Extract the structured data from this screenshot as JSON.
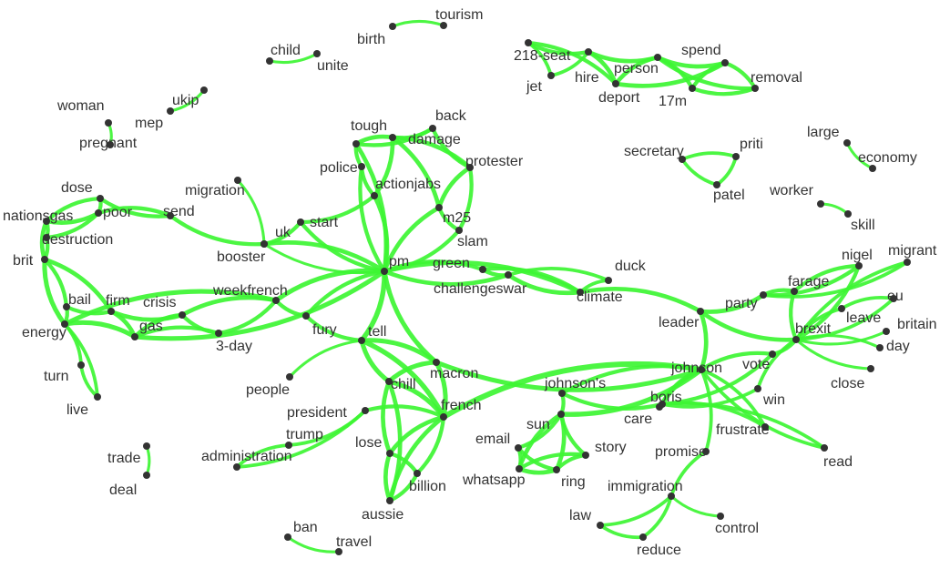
{
  "graph": {
    "edge_color": "#3df533",
    "node_color": "#333333",
    "label_color": "#333333",
    "background": "#ffffff",
    "nodes": [
      {
        "id": "tourism",
        "label": "tourism"
      },
      {
        "id": "birth",
        "label": "birth"
      },
      {
        "id": "child",
        "label": "child"
      },
      {
        "id": "unite",
        "label": "unite"
      },
      {
        "id": "218-seat",
        "label": "218-seat"
      },
      {
        "id": "jet",
        "label": "jet"
      },
      {
        "id": "hire",
        "label": "hire"
      },
      {
        "id": "person",
        "label": "person"
      },
      {
        "id": "deport",
        "label": "deport"
      },
      {
        "id": "17m",
        "label": "17m"
      },
      {
        "id": "spend",
        "label": "spend"
      },
      {
        "id": "removal",
        "label": "removal"
      },
      {
        "id": "woman",
        "label": "woman"
      },
      {
        "id": "pregnant",
        "label": "pregnant"
      },
      {
        "id": "ukip",
        "label": "ukip"
      },
      {
        "id": "mep",
        "label": "mep"
      },
      {
        "id": "tough",
        "label": "tough"
      },
      {
        "id": "back",
        "label": "back"
      },
      {
        "id": "damage",
        "label": "damage"
      },
      {
        "id": "protester",
        "label": "protester"
      },
      {
        "id": "police",
        "label": "police"
      },
      {
        "id": "actionjabs",
        "label": "actionjabs"
      },
      {
        "id": "m25",
        "label": "m25"
      },
      {
        "id": "slam",
        "label": "slam"
      },
      {
        "id": "secretary",
        "label": "secretary"
      },
      {
        "id": "priti",
        "label": "priti"
      },
      {
        "id": "patel",
        "label": "patel"
      },
      {
        "id": "large",
        "label": "large"
      },
      {
        "id": "economy",
        "label": "economy"
      },
      {
        "id": "worker",
        "label": "worker"
      },
      {
        "id": "skill",
        "label": "skill"
      },
      {
        "id": "dose",
        "label": "dose"
      },
      {
        "id": "migration",
        "label": "migration"
      },
      {
        "id": "nationsgas",
        "label": "nationsgas"
      },
      {
        "id": "poor",
        "label": "poor"
      },
      {
        "id": "send",
        "label": "send"
      },
      {
        "id": "uk",
        "label": "uk"
      },
      {
        "id": "start",
        "label": "start"
      },
      {
        "id": "destruction",
        "label": "destruction"
      },
      {
        "id": "booster",
        "label": "booster"
      },
      {
        "id": "brit",
        "label": "brit"
      },
      {
        "id": "pm",
        "label": "pm"
      },
      {
        "id": "green",
        "label": "green"
      },
      {
        "id": "challengeswar",
        "label": "challengeswar"
      },
      {
        "id": "duck",
        "label": "duck"
      },
      {
        "id": "climate",
        "label": "climate"
      },
      {
        "id": "nigel",
        "label": "nigel"
      },
      {
        "id": "migrant",
        "label": "migrant"
      },
      {
        "id": "farage",
        "label": "farage"
      },
      {
        "id": "party",
        "label": "party"
      },
      {
        "id": "eu",
        "label": "eu"
      },
      {
        "id": "bail",
        "label": "bail"
      },
      {
        "id": "firm",
        "label": "firm"
      },
      {
        "id": "crisis",
        "label": "crisis"
      },
      {
        "id": "weekfrench",
        "label": "weekfrench"
      },
      {
        "id": "leader",
        "label": "leader"
      },
      {
        "id": "leave",
        "label": "leave"
      },
      {
        "id": "britain",
        "label": "britain"
      },
      {
        "id": "brexit",
        "label": "brexit"
      },
      {
        "id": "energy",
        "label": "energy"
      },
      {
        "id": "gas",
        "label": "gas"
      },
      {
        "id": "fury",
        "label": "fury"
      },
      {
        "id": "tell",
        "label": "tell"
      },
      {
        "id": "3-day",
        "label": "3-day"
      },
      {
        "id": "day",
        "label": "day"
      },
      {
        "id": "vote",
        "label": "vote"
      },
      {
        "id": "turn",
        "label": "turn"
      },
      {
        "id": "macron",
        "label": "macron"
      },
      {
        "id": "johnson",
        "label": "johnson"
      },
      {
        "id": "johnsons",
        "label": "johnson's"
      },
      {
        "id": "close",
        "label": "close"
      },
      {
        "id": "people",
        "label": "people"
      },
      {
        "id": "chill",
        "label": "chill"
      },
      {
        "id": "boris",
        "label": "boris"
      },
      {
        "id": "live",
        "label": "live"
      },
      {
        "id": "win",
        "label": "win"
      },
      {
        "id": "president",
        "label": "president"
      },
      {
        "id": "french",
        "label": "french"
      },
      {
        "id": "care",
        "label": "care"
      },
      {
        "id": "trump",
        "label": "trump"
      },
      {
        "id": "sun",
        "label": "sun"
      },
      {
        "id": "frustrate",
        "label": "frustrate"
      },
      {
        "id": "email",
        "label": "email"
      },
      {
        "id": "lose",
        "label": "lose"
      },
      {
        "id": "story",
        "label": "story"
      },
      {
        "id": "administration",
        "label": "administration"
      },
      {
        "id": "promise",
        "label": "promise"
      },
      {
        "id": "trade",
        "label": "trade"
      },
      {
        "id": "read",
        "label": "read"
      },
      {
        "id": "whatsapp",
        "label": "whatsapp"
      },
      {
        "id": "ring",
        "label": "ring"
      },
      {
        "id": "billion",
        "label": "billion"
      },
      {
        "id": "deal",
        "label": "deal"
      },
      {
        "id": "immigration",
        "label": "immigration"
      },
      {
        "id": "aussie",
        "label": "aussie"
      },
      {
        "id": "law",
        "label": "law"
      },
      {
        "id": "control",
        "label": "control"
      },
      {
        "id": "ban",
        "label": "ban"
      },
      {
        "id": "travel",
        "label": "travel"
      },
      {
        "id": "reduce",
        "label": "reduce"
      }
    ],
    "edges": [
      [
        "birth",
        "tourism"
      ],
      [
        "child",
        "unite"
      ],
      [
        "218-seat",
        "jet"
      ],
      [
        "218-seat",
        "hire"
      ],
      [
        "218-seat",
        "person"
      ],
      [
        "jet",
        "hire"
      ],
      [
        "hire",
        "person"
      ],
      [
        "hire",
        "deport"
      ],
      [
        "person",
        "deport"
      ],
      [
        "person",
        "spend"
      ],
      [
        "deport",
        "17m"
      ],
      [
        "deport",
        "spend"
      ],
      [
        "17m",
        "spend"
      ],
      [
        "17m",
        "removal"
      ],
      [
        "spend",
        "removal"
      ],
      [
        "deport",
        "removal"
      ],
      [
        "woman",
        "pregnant"
      ],
      [
        "mep",
        "ukip"
      ],
      [
        "secretary",
        "priti"
      ],
      [
        "secretary",
        "patel"
      ],
      [
        "priti",
        "patel"
      ],
      [
        "large",
        "economy"
      ],
      [
        "worker",
        "skill"
      ],
      [
        "pm",
        "tough"
      ],
      [
        "pm",
        "police"
      ],
      [
        "pm",
        "actionjabs"
      ],
      [
        "pm",
        "m25"
      ],
      [
        "pm",
        "slam"
      ],
      [
        "pm",
        "start"
      ],
      [
        "pm",
        "uk"
      ],
      [
        "pm",
        "green"
      ],
      [
        "pm",
        "challengeswar"
      ],
      [
        "pm",
        "climate"
      ],
      [
        "pm",
        "weekfrench"
      ],
      [
        "pm",
        "gas"
      ],
      [
        "pm",
        "fury"
      ],
      [
        "pm",
        "tell"
      ],
      [
        "pm",
        "macron"
      ],
      [
        "pm",
        "booster"
      ],
      [
        "tough",
        "back"
      ],
      [
        "tough",
        "damage"
      ],
      [
        "tough",
        "police"
      ],
      [
        "back",
        "damage"
      ],
      [
        "back",
        "protester"
      ],
      [
        "damage",
        "protester"
      ],
      [
        "police",
        "actionjabs"
      ],
      [
        "damage",
        "m25"
      ],
      [
        "protester",
        "m25"
      ],
      [
        "protester",
        "slam"
      ],
      [
        "m25",
        "slam"
      ],
      [
        "actionjabs",
        "start"
      ],
      [
        "actionjabs",
        "damage"
      ],
      [
        "migration",
        "uk"
      ],
      [
        "uk",
        "start"
      ],
      [
        "uk",
        "send"
      ],
      [
        "send",
        "poor"
      ],
      [
        "send",
        "dose"
      ],
      [
        "poor",
        "dose"
      ],
      [
        "poor",
        "nationsgas"
      ],
      [
        "dose",
        "nationsgas"
      ],
      [
        "nationsgas",
        "destruction"
      ],
      [
        "nationsgas",
        "brit"
      ],
      [
        "destruction",
        "brit"
      ],
      [
        "destruction",
        "poor"
      ],
      [
        "brit",
        "bail"
      ],
      [
        "brit",
        "energy"
      ],
      [
        "brit",
        "firm"
      ],
      [
        "bail",
        "firm"
      ],
      [
        "bail",
        "energy"
      ],
      [
        "firm",
        "crisis"
      ],
      [
        "firm",
        "gas"
      ],
      [
        "crisis",
        "gas"
      ],
      [
        "crisis",
        "weekfrench"
      ],
      [
        "crisis",
        "3-day"
      ],
      [
        "gas",
        "3-day"
      ],
      [
        "gas",
        "energy"
      ],
      [
        "weekfrench",
        "3-day"
      ],
      [
        "weekfrench",
        "energy"
      ],
      [
        "energy",
        "turn"
      ],
      [
        "turn",
        "live"
      ],
      [
        "energy",
        "live"
      ],
      [
        "fury",
        "tell"
      ],
      [
        "fury",
        "weekfrench"
      ],
      [
        "tell",
        "people"
      ],
      [
        "tell",
        "macron"
      ],
      [
        "tell",
        "chill"
      ],
      [
        "tell",
        "french"
      ],
      [
        "green",
        "challengeswar"
      ],
      [
        "green",
        "climate"
      ],
      [
        "challengeswar",
        "climate"
      ],
      [
        "challengeswar",
        "duck"
      ],
      [
        "duck",
        "climate"
      ],
      [
        "climate",
        "leader"
      ],
      [
        "leader",
        "party"
      ],
      [
        "leader",
        "johnson"
      ],
      [
        "leader",
        "brexit"
      ],
      [
        "party",
        "farage"
      ],
      [
        "party",
        "nigel"
      ],
      [
        "farage",
        "nigel"
      ],
      [
        "farage",
        "brexit"
      ],
      [
        "nigel",
        "brexit"
      ],
      [
        "brexit",
        "eu"
      ],
      [
        "brexit",
        "leave"
      ],
      [
        "brexit",
        "britain"
      ],
      [
        "brexit",
        "day"
      ],
      [
        "brexit",
        "close"
      ],
      [
        "brexit",
        "vote"
      ],
      [
        "brexit",
        "win"
      ],
      [
        "brexit",
        "migrant"
      ],
      [
        "eu",
        "leave"
      ],
      [
        "migrant",
        "party"
      ],
      [
        "johnson",
        "boris"
      ],
      [
        "johnson",
        "vote"
      ],
      [
        "johnson",
        "johnsons"
      ],
      [
        "johnson",
        "frustrate"
      ],
      [
        "johnson",
        "read"
      ],
      [
        "johnson",
        "promise"
      ],
      [
        "johnson",
        "care"
      ],
      [
        "johnson",
        "macron"
      ],
      [
        "johnson",
        "french"
      ],
      [
        "boris",
        "frustrate"
      ],
      [
        "boris",
        "vote"
      ],
      [
        "boris",
        "read"
      ],
      [
        "boris",
        "win"
      ],
      [
        "johnsons",
        "sun"
      ],
      [
        "johnsons",
        "boris"
      ],
      [
        "sun",
        "email"
      ],
      [
        "sun",
        "whatsapp"
      ],
      [
        "sun",
        "ring"
      ],
      [
        "sun",
        "story"
      ],
      [
        "email",
        "whatsapp"
      ],
      [
        "whatsapp",
        "ring"
      ],
      [
        "ring",
        "story"
      ],
      [
        "email",
        "ring"
      ],
      [
        "whatsapp",
        "story"
      ],
      [
        "sun",
        "johnson"
      ],
      [
        "macron",
        "french"
      ],
      [
        "macron",
        "chill"
      ],
      [
        "chill",
        "french"
      ],
      [
        "chill",
        "lose"
      ],
      [
        "chill",
        "aussie"
      ],
      [
        "french",
        "lose"
      ],
      [
        "french",
        "billion"
      ],
      [
        "french",
        "aussie"
      ],
      [
        "lose",
        "billion"
      ],
      [
        "lose",
        "aussie"
      ],
      [
        "billion",
        "aussie"
      ],
      [
        "french",
        "president"
      ],
      [
        "president",
        "trump"
      ],
      [
        "trump",
        "administration"
      ],
      [
        "president",
        "administration"
      ],
      [
        "promise",
        "immigration"
      ],
      [
        "immigration",
        "law"
      ],
      [
        "immigration",
        "control"
      ],
      [
        "immigration",
        "reduce"
      ],
      [
        "law",
        "reduce"
      ],
      [
        "trade",
        "deal"
      ],
      [
        "ban",
        "travel"
      ]
    ]
  }
}
